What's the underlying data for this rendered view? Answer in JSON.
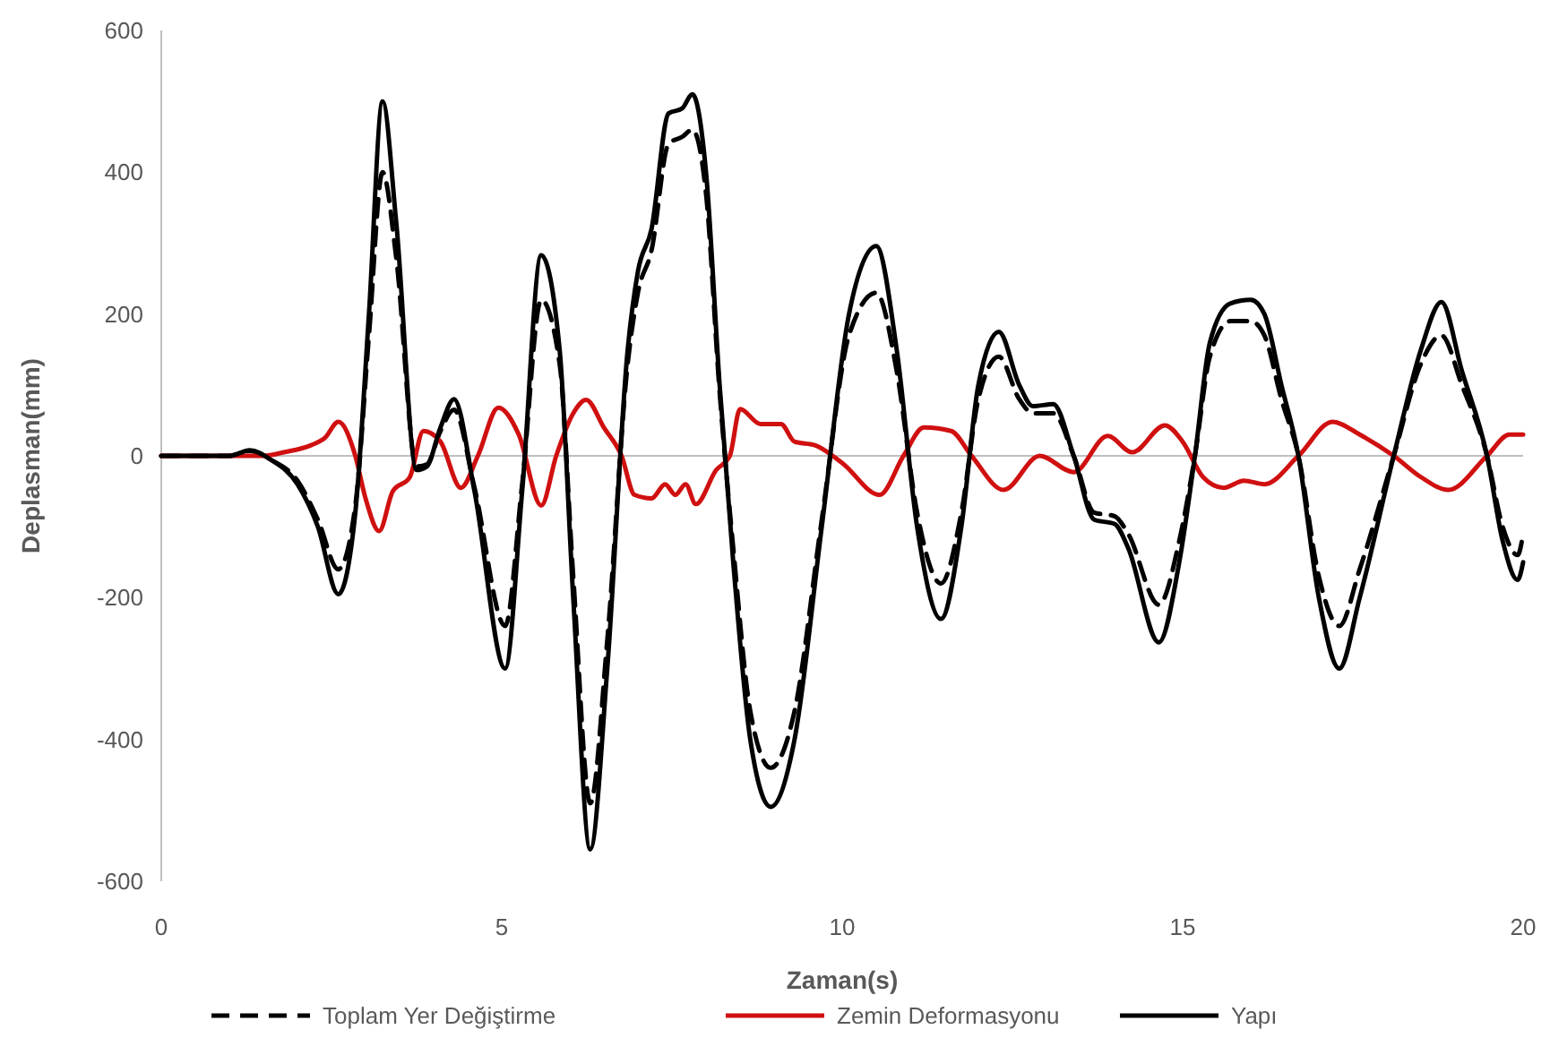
{
  "chart_data": {
    "type": "line",
    "xlabel": "Zaman(s)",
    "ylabel": "Deplasman(mm)",
    "xlim": [
      0,
      20
    ],
    "xticks": [
      0,
      5,
      10,
      15,
      20
    ],
    "ylim": [
      -600,
      600
    ],
    "yticks": [
      -600,
      -400,
      -200,
      0,
      200,
      400,
      600
    ],
    "legend": "bottom",
    "marker": "none",
    "series": [
      {
        "name": "Toplam Yer Değiştirme",
        "color": "#000000",
        "line_style": "dashed",
        "x": [
          0,
          1,
          1.3,
          1.6,
          2.0,
          2.3,
          2.6,
          2.85,
          3.05,
          3.25,
          3.45,
          3.75,
          3.9,
          4.1,
          4.3,
          4.6,
          5.05,
          5.3,
          5.58,
          5.85,
          6.05,
          6.3,
          6.55,
          6.85,
          7.0,
          7.2,
          7.45,
          7.65,
          7.8,
          8.0,
          8.2,
          8.4,
          8.65,
          8.95,
          9.3,
          9.7,
          10.1,
          10.5,
          10.8,
          11.1,
          11.45,
          11.75,
          12.0,
          12.3,
          12.6,
          12.8,
          13.1,
          13.4,
          13.7,
          14.0,
          14.2,
          14.65,
          14.95,
          15.18,
          15.4,
          15.7,
          16.0,
          16.2,
          16.45,
          16.7,
          17.0,
          17.3,
          17.6,
          18.1,
          18.5,
          18.8,
          19.1,
          19.47,
          19.7,
          19.92,
          20
        ],
        "values": [
          0,
          0,
          7,
          -5,
          -35,
          -90,
          -160,
          -70,
          170,
          400,
          280,
          -15,
          -12,
          35,
          65,
          -45,
          -240,
          -40,
          220,
          130,
          -170,
          -490,
          -260,
          130,
          230,
          290,
          440,
          450,
          460,
          370,
          90,
          -130,
          -360,
          -440,
          -360,
          -90,
          170,
          230,
          120,
          -80,
          -180,
          -80,
          80,
          140,
          80,
          60,
          60,
          0,
          -80,
          -85,
          -110,
          -210,
          -120,
          0,
          140,
          190,
          190,
          170,
          80,
          0,
          -170,
          -240,
          -160,
          0,
          130,
          170,
          100,
          0,
          -100,
          -140,
          -110
        ]
      },
      {
        "name": "Zemin Deformasyonu",
        "color": "#d01010",
        "line_style": "solid",
        "x": [
          0,
          1.5,
          1.8,
          2.2,
          2.4,
          2.6,
          2.85,
          3.0,
          3.2,
          3.4,
          3.65,
          3.85,
          4.1,
          4.4,
          4.65,
          4.95,
          5.25,
          5.58,
          5.8,
          6.05,
          6.24,
          6.5,
          6.76,
          6.95,
          7.2,
          7.4,
          7.55,
          7.7,
          7.85,
          8.15,
          8.35,
          8.5,
          8.8,
          9.1,
          9.3,
          9.6,
          10.0,
          10.55,
          10.9,
          11.2,
          11.6,
          11.9,
          12.37,
          12.9,
          13.4,
          13.9,
          14.26,
          14.74,
          15.0,
          15.3,
          15.6,
          15.9,
          16.2,
          16.7,
          17.2,
          17.6,
          18.1,
          18.5,
          18.9,
          19.47,
          19.8,
          20
        ],
        "values": [
          0,
          0,
          5,
          15,
          25,
          48,
          0,
          -60,
          -106,
          -50,
          -30,
          35,
          20,
          -45,
          0,
          68,
          30,
          -70,
          0,
          60,
          79,
          40,
          0,
          -55,
          -60,
          -40,
          -55,
          -40,
          -68,
          -20,
          0,
          66,
          45,
          45,
          20,
          15,
          -10,
          -55,
          0,
          40,
          35,
          0,
          -48,
          0,
          -23,
          28,
          5,
          43,
          20,
          -30,
          -45,
          -35,
          -40,
          0,
          48,
          30,
          0,
          -30,
          -48,
          0,
          30,
          30
        ]
      },
      {
        "name": "Yapı",
        "color": "#000000",
        "line_style": "solid",
        "x": [
          0,
          1,
          1.3,
          1.6,
          2.0,
          2.3,
          2.6,
          2.85,
          3.05,
          3.25,
          3.45,
          3.75,
          3.9,
          4.1,
          4.3,
          4.6,
          5.05,
          5.3,
          5.58,
          5.85,
          6.05,
          6.3,
          6.55,
          6.85,
          7.0,
          7.2,
          7.45,
          7.65,
          7.8,
          8.0,
          8.2,
          8.4,
          8.65,
          8.95,
          9.3,
          9.7,
          10.1,
          10.5,
          10.8,
          11.1,
          11.45,
          11.75,
          12.0,
          12.3,
          12.6,
          12.8,
          13.1,
          13.4,
          13.7,
          14.0,
          14.2,
          14.65,
          14.95,
          15.18,
          15.4,
          15.7,
          16.0,
          16.2,
          16.45,
          16.7,
          17.0,
          17.3,
          17.6,
          18.1,
          18.5,
          18.8,
          19.1,
          19.47,
          19.7,
          19.92,
          20
        ],
        "values": [
          0,
          0,
          8,
          -5,
          -40,
          -100,
          -195,
          -80,
          200,
          500,
          330,
          -20,
          -15,
          40,
          80,
          -50,
          -300,
          -50,
          283,
          150,
          -200,
          -555,
          -300,
          150,
          260,
          320,
          483,
          490,
          510,
          400,
          100,
          -150,
          -400,
          -495,
          -400,
          -100,
          200,
          296,
          150,
          -100,
          -230,
          -100,
          100,
          175,
          100,
          70,
          73,
          0,
          -90,
          -96,
          -130,
          -263,
          -150,
          0,
          160,
          215,
          220,
          200,
          100,
          0,
          -200,
          -300,
          -200,
          0,
          150,
          217,
          120,
          0,
          -120,
          -175,
          -150
        ]
      }
    ]
  }
}
